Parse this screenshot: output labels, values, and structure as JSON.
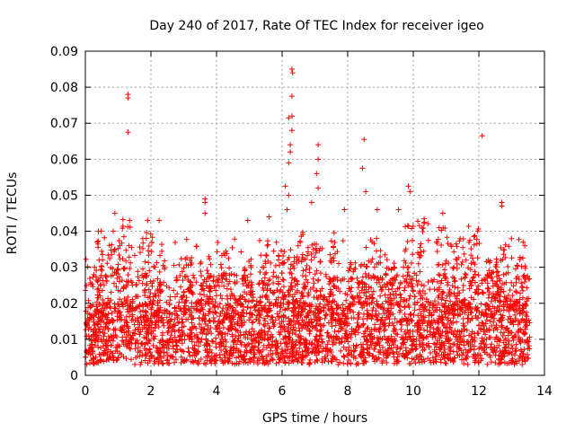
{
  "chart_data": {
    "type": "scatter",
    "title": "Day 240 of 2017, Rate Of TEC Index for receiver igeo",
    "xlabel": "GPS time / hours",
    "ylabel": "ROTI / TECUs",
    "xlim": [
      0,
      14
    ],
    "ylim": [
      0,
      0.09
    ],
    "xticks": [
      0,
      2,
      4,
      6,
      8,
      10,
      12,
      14
    ],
    "xtick_labels": [
      "0",
      "2",
      "4",
      "6",
      "8",
      "10",
      "12",
      "14"
    ],
    "yticks": [
      0,
      0.01,
      0.02,
      0.03,
      0.04,
      0.05,
      0.06,
      0.07,
      0.08,
      0.09
    ],
    "ytick_labels": [
      "0",
      "0.01",
      "0.02",
      "0.03",
      "0.04",
      "0.05",
      "0.06",
      "0.07",
      "0.08",
      "0.09"
    ],
    "grid": true,
    "marker": "+",
    "color": "#ff0000",
    "x_range_data": [
      0,
      13.55
    ],
    "dense_band": [
      0.003,
      0.02
    ],
    "notable_points": [
      {
        "x": 1.3,
        "y": 0.078
      },
      {
        "x": 1.3,
        "y": 0.077
      },
      {
        "x": 1.3,
        "y": 0.0675
      },
      {
        "x": 0.9,
        "y": 0.045
      },
      {
        "x": 0.85,
        "y": 0.04
      },
      {
        "x": 1.9,
        "y": 0.043
      },
      {
        "x": 2.25,
        "y": 0.043
      },
      {
        "x": 3.65,
        "y": 0.049
      },
      {
        "x": 3.65,
        "y": 0.048
      },
      {
        "x": 3.65,
        "y": 0.045
      },
      {
        "x": 4.95,
        "y": 0.043
      },
      {
        "x": 5.6,
        "y": 0.044
      },
      {
        "x": 6.3,
        "y": 0.085
      },
      {
        "x": 6.32,
        "y": 0.084
      },
      {
        "x": 6.3,
        "y": 0.0775
      },
      {
        "x": 6.2,
        "y": 0.0715
      },
      {
        "x": 6.3,
        "y": 0.072
      },
      {
        "x": 6.3,
        "y": 0.068
      },
      {
        "x": 6.25,
        "y": 0.064
      },
      {
        "x": 6.2,
        "y": 0.059
      },
      {
        "x": 6.25,
        "y": 0.062
      },
      {
        "x": 6.1,
        "y": 0.0525
      },
      {
        "x": 6.2,
        "y": 0.05
      },
      {
        "x": 6.15,
        "y": 0.046
      },
      {
        "x": 7.1,
        "y": 0.064
      },
      {
        "x": 7.1,
        "y": 0.06
      },
      {
        "x": 7.05,
        "y": 0.056
      },
      {
        "x": 7.1,
        "y": 0.052
      },
      {
        "x": 6.9,
        "y": 0.048
      },
      {
        "x": 8.5,
        "y": 0.0655
      },
      {
        "x": 8.45,
        "y": 0.0575
      },
      {
        "x": 8.55,
        "y": 0.051
      },
      {
        "x": 7.9,
        "y": 0.046
      },
      {
        "x": 8.9,
        "y": 0.046
      },
      {
        "x": 9.85,
        "y": 0.0525
      },
      {
        "x": 9.9,
        "y": 0.051
      },
      {
        "x": 9.55,
        "y": 0.046
      },
      {
        "x": 10.9,
        "y": 0.045
      },
      {
        "x": 11.85,
        "y": 0.0385
      },
      {
        "x": 12.1,
        "y": 0.0665
      },
      {
        "x": 12.7,
        "y": 0.048
      },
      {
        "x": 12.7,
        "y": 0.047
      },
      {
        "x": 13.35,
        "y": 0.037
      },
      {
        "x": 13.4,
        "y": 0.036
      }
    ]
  }
}
